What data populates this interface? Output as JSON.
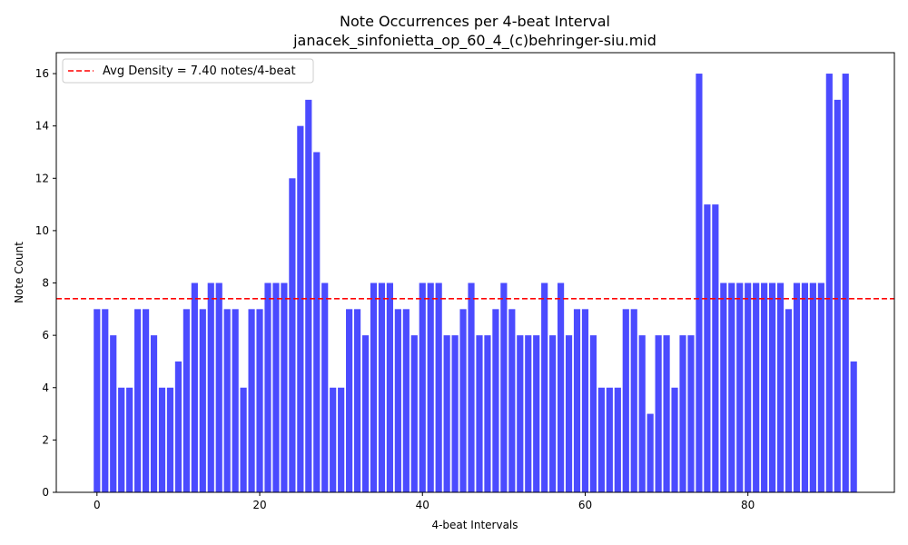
{
  "chart_data": {
    "type": "bar",
    "title": "Note Occurrences per 4-beat Interval",
    "subtitle": "janacek_sinfonietta_op_60_4_(c)behringer-siu.mid",
    "xlabel": "4-beat Intervals",
    "ylabel": "Note Count",
    "xlim": [
      -5,
      98
    ],
    "ylim": [
      0,
      16.8
    ],
    "xticks": [
      0,
      20,
      40,
      60,
      80
    ],
    "yticks": [
      0,
      2,
      4,
      6,
      8,
      10,
      12,
      14,
      16
    ],
    "grid": false,
    "legend_position": "top-left",
    "series": [
      {
        "color": "#4b4bff",
        "values": [
          7,
          7,
          6,
          4,
          4,
          7,
          7,
          6,
          4,
          4,
          5,
          7,
          8,
          7,
          8,
          8,
          7,
          7,
          4,
          7,
          7,
          8,
          8,
          8,
          12,
          14,
          15,
          13,
          8,
          4,
          4,
          7,
          7,
          6,
          8,
          8,
          8,
          7,
          7,
          6,
          8,
          8,
          8,
          6,
          6,
          7,
          8,
          6,
          6,
          7,
          8,
          7,
          6,
          6,
          6,
          8,
          6,
          8,
          6,
          7,
          7,
          6,
          4,
          4,
          4,
          7,
          7,
          6,
          3,
          6,
          6,
          4,
          6,
          6,
          16,
          11,
          11,
          8,
          8,
          8,
          8,
          8,
          8,
          8,
          8,
          7,
          8,
          8,
          8,
          8,
          16,
          15,
          16,
          5
        ]
      }
    ],
    "reference_line": {
      "value": 7.4,
      "label": "Avg Density = 7.40 notes/4-beat",
      "color": "#ff0000",
      "style": "dashed"
    }
  }
}
